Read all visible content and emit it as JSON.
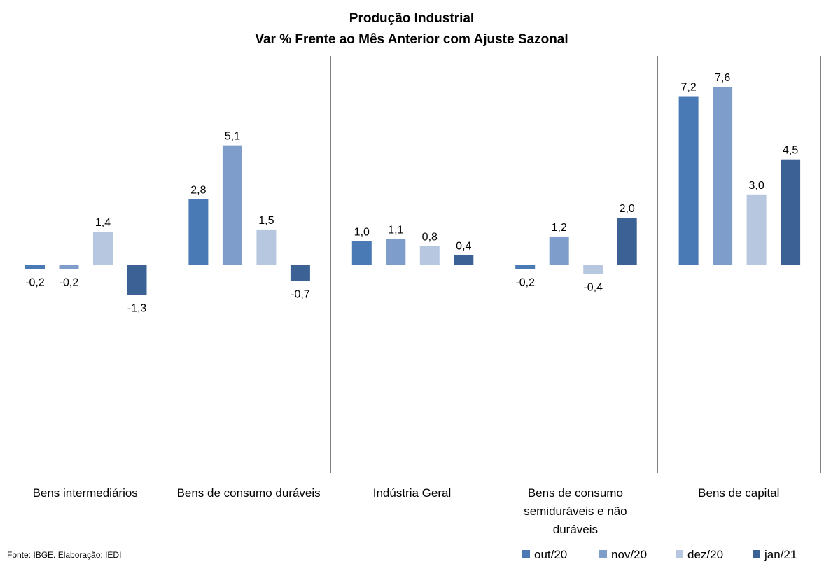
{
  "chart_data": {
    "type": "bar",
    "title": "Produção Industrial",
    "subtitle": "Var % Frente ao Mês Anterior com Ajuste Sazonal",
    "categories": [
      [
        "Bens intermediários"
      ],
      [
        "Bens de consumo duráveis"
      ],
      [
        "Indústria Geral"
      ],
      [
        "Bens de consumo",
        "semiduráveis e não",
        "duráveis"
      ],
      [
        "Bens de capital"
      ]
    ],
    "series": [
      {
        "name": "out/20",
        "color": "#4a7ab5",
        "values": [
          -0.2,
          2.8,
          1.0,
          -0.2,
          7.2
        ],
        "labels": [
          "-0,2",
          "2,8",
          "1,0",
          "-0,2",
          "7,2"
        ]
      },
      {
        "name": "nov/20",
        "color": "#7f9dcb",
        "values": [
          -0.2,
          5.1,
          1.1,
          1.2,
          7.6
        ],
        "labels": [
          "-0,2",
          "5,1",
          "1,1",
          "1,2",
          "7,6"
        ]
      },
      {
        "name": "dez/20",
        "color": "#b8c7e0",
        "values": [
          1.4,
          1.5,
          0.8,
          -0.4,
          3.0
        ],
        "labels": [
          "1,4",
          "1,5",
          "0,8",
          "-0,4",
          "3,0"
        ]
      },
      {
        "name": "jan/21",
        "color": "#3c6295",
        "values": [
          -1.3,
          -0.7,
          0.4,
          2.0,
          4.5
        ],
        "labels": [
          "-1,3",
          "-0,7",
          "0,4",
          "2,0",
          "4,5"
        ]
      }
    ],
    "grid": false,
    "legend_position": "bottom-right"
  },
  "source_note": "Fonte: IBGE. Elaboração: IEDI"
}
